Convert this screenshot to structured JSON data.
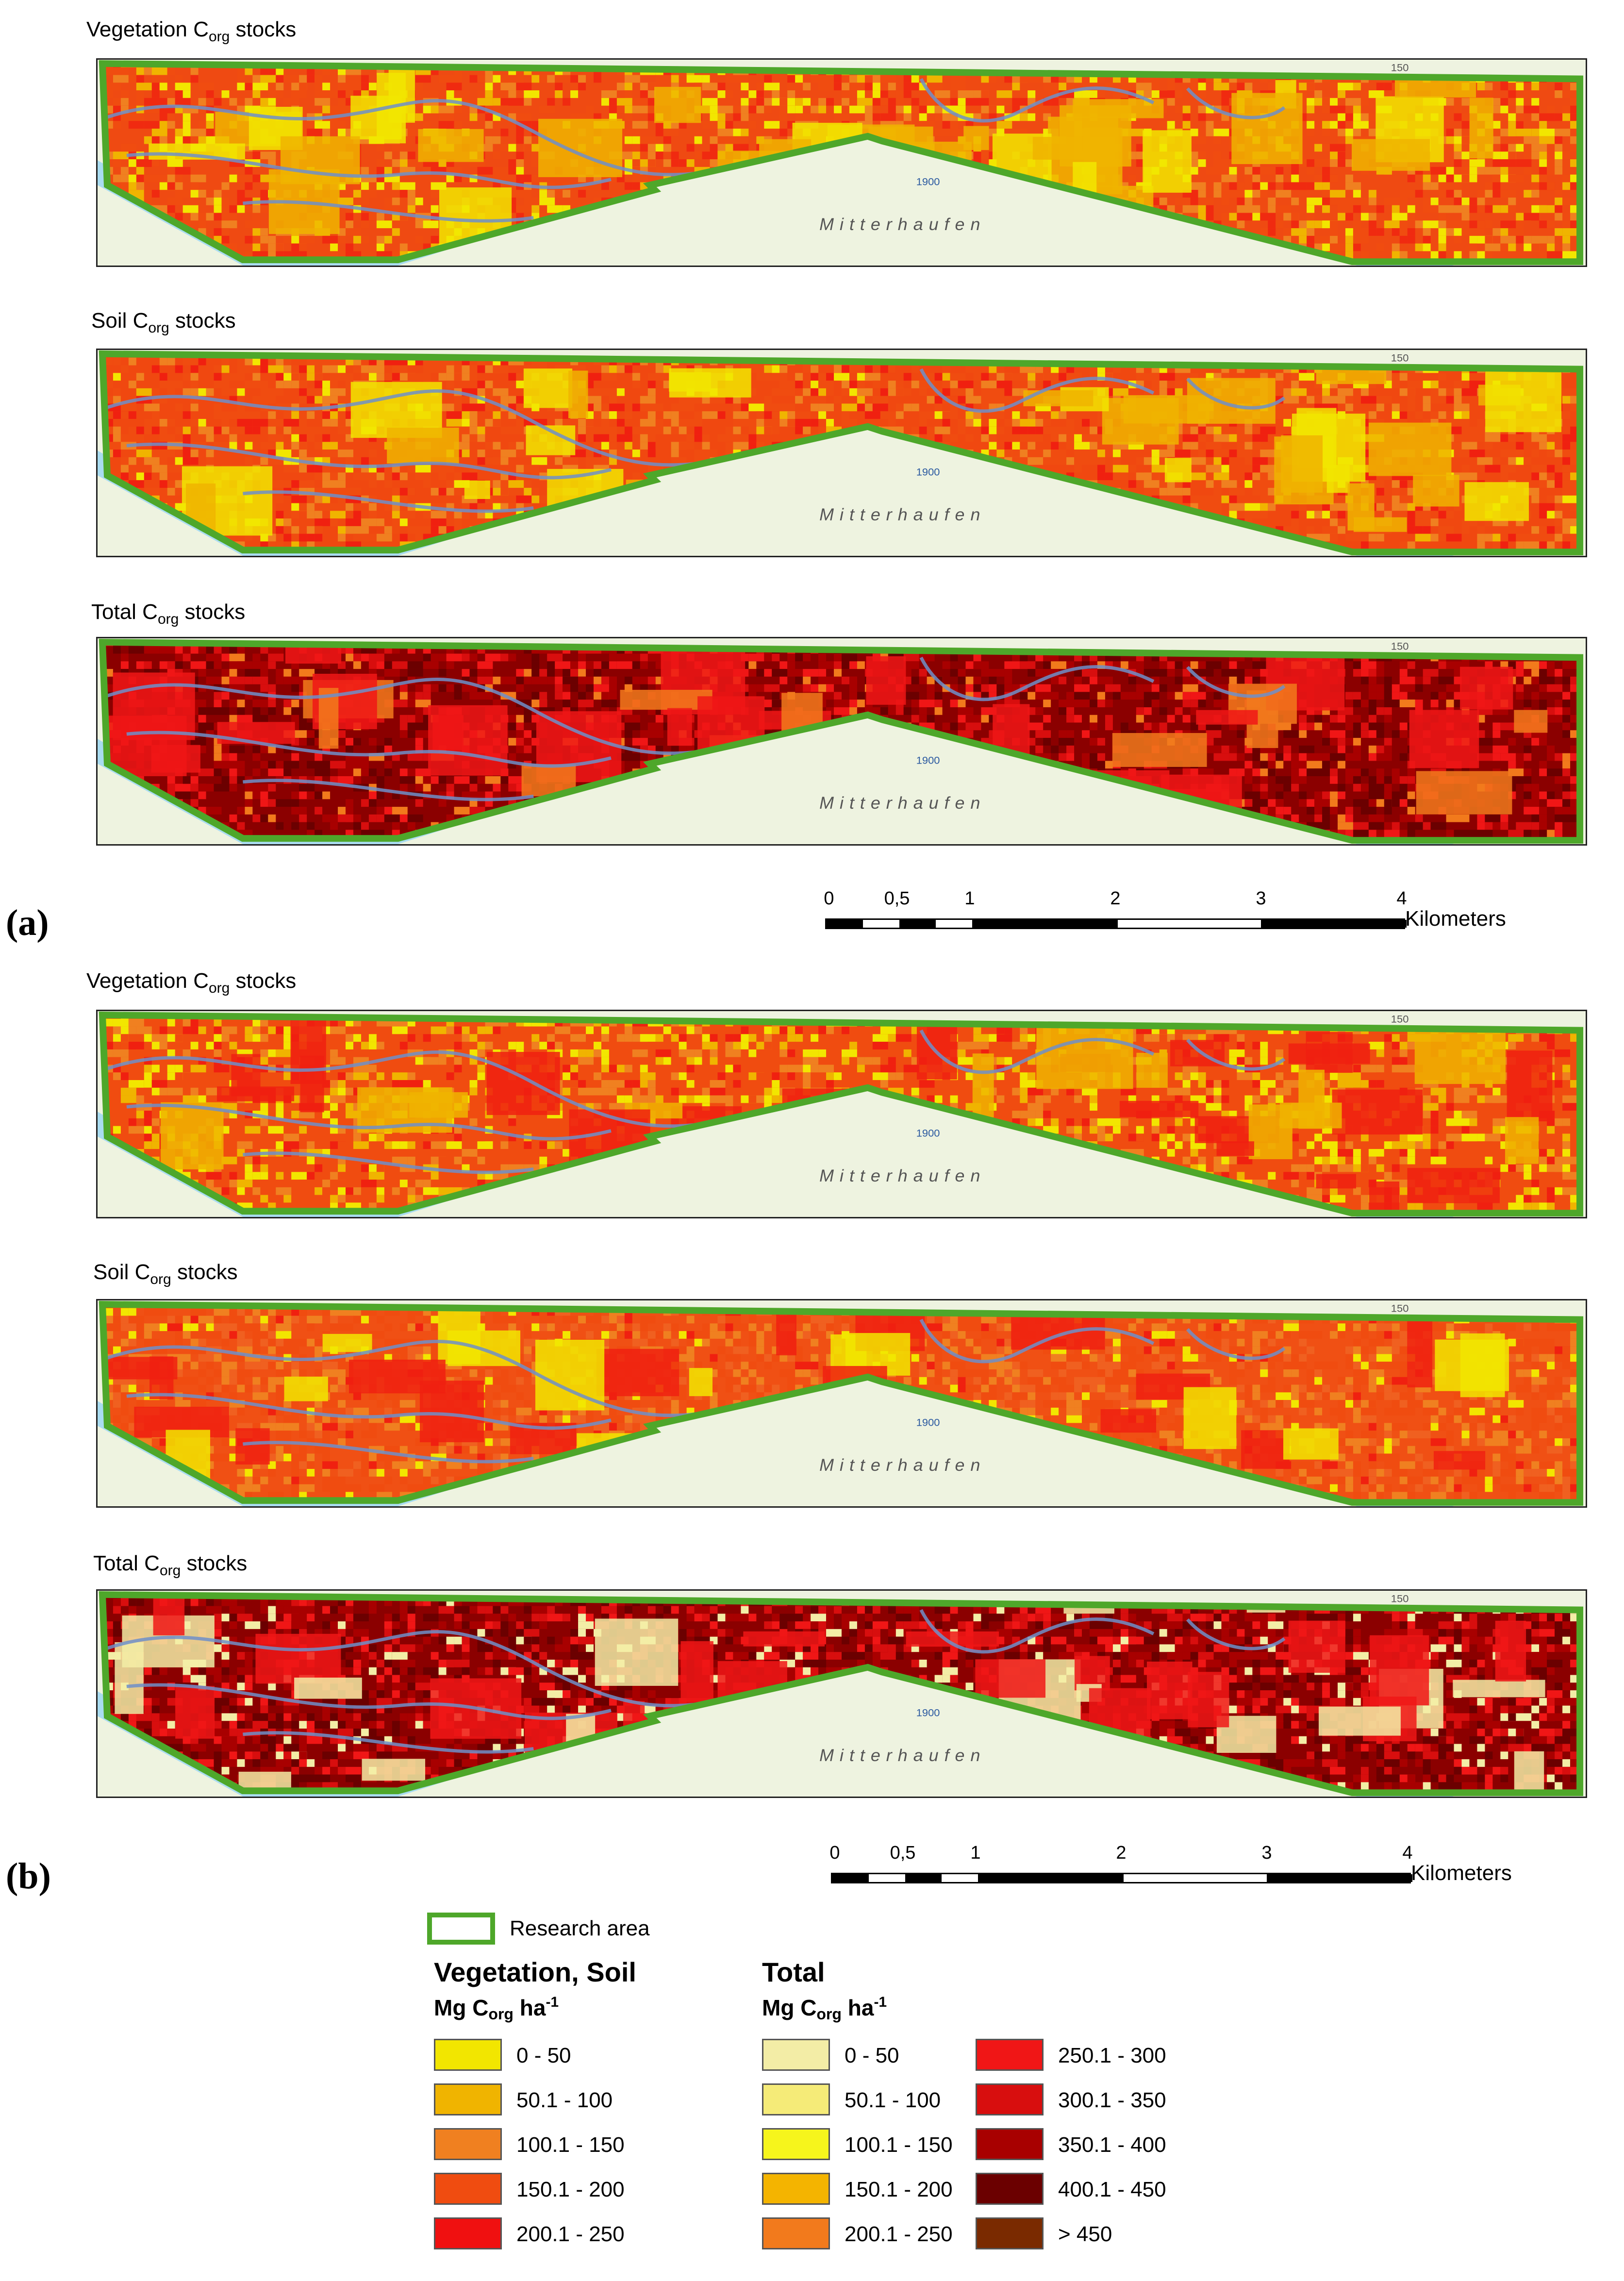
{
  "panels": [
    {
      "tag": "(a)",
      "maps": [
        {
          "title_pre": "Vegetation C",
          "title_sub": "org",
          "title_post": " stocks",
          "scheme": "vegetation_a"
        },
        {
          "title_pre": "Soil C",
          "title_sub": "org",
          "title_post": " stocks",
          "scheme": "soil_a"
        },
        {
          "title_pre": "Total C",
          "title_sub": "org",
          "title_post": " stocks",
          "scheme": "total_a"
        }
      ]
    },
    {
      "tag": "(b)",
      "maps": [
        {
          "title_pre": "Vegetation C",
          "title_sub": "org",
          "title_post": " stocks",
          "scheme": "vegetation_b"
        },
        {
          "title_pre": "Soil C",
          "title_sub": "org",
          "title_post": " stocks",
          "scheme": "soil_b"
        },
        {
          "title_pre": "Total C",
          "title_sub": "org",
          "title_post": " stocks",
          "scheme": "total_b"
        }
      ]
    }
  ],
  "map_labels": {
    "place": "Mitterhaufen",
    "contour_a": "1900",
    "contour_b": "150"
  },
  "scale_bar": {
    "ticks": [
      "0",
      "0,5",
      "1",
      "2",
      "3",
      "4"
    ],
    "unit": "Kilometers"
  },
  "legend": {
    "research_area": "Research area",
    "veg_soil_heading": "Vegetation, Soil",
    "total_heading": "Total",
    "unit_pre": "Mg C",
    "unit_sub": "org",
    "unit_mid": " ha",
    "unit_sup": "-1",
    "veg_soil_classes": [
      {
        "label": "0 - 50",
        "color": "#f2e600"
      },
      {
        "label": "50.1 - 100",
        "color": "#f0b400"
      },
      {
        "label": "100.1 - 150",
        "color": "#f08020"
      },
      {
        "label": "150.1 - 200",
        "color": "#f04c10"
      },
      {
        "label": "200.1 - 250",
        "color": "#f01010"
      }
    ],
    "total_classes_col1": [
      {
        "label": "0 - 50",
        "color": "#f3eda6"
      },
      {
        "label": "50.1 - 100",
        "color": "#f5eb78"
      },
      {
        "label": "100.1 - 150",
        "color": "#f6f51c"
      },
      {
        "label": "150.1 - 200",
        "color": "#f4b400"
      },
      {
        "label": "200.1 - 250",
        "color": "#f27a1c"
      }
    ],
    "total_classes_col2": [
      {
        "label": "250.1 - 300",
        "color": "#f01616"
      },
      {
        "label": "300.1 - 350",
        "color": "#d80e0e"
      },
      {
        "label": "350.1 - 400",
        "color": "#a80000"
      },
      {
        "label": "400.1 - 450",
        "color": "#6b0000"
      },
      {
        "label": "> 450",
        "color": "#7a2a00"
      }
    ]
  },
  "colors": {
    "research_area": "#4ea72a",
    "water": "#a9dcf0",
    "river": "#6f8fc9",
    "land_base": "#eef3e0"
  }
}
